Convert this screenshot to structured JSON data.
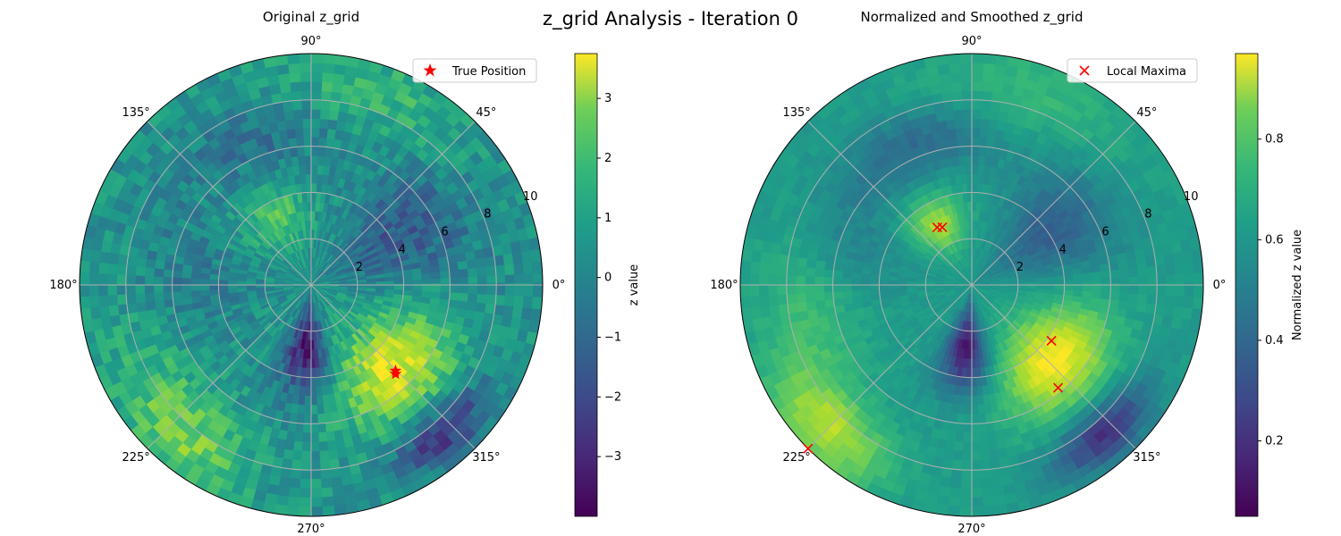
{
  "suptitle": "z_grid Analysis - Iteration 0",
  "chart_data": [
    {
      "type": "heatmap",
      "projection": "polar",
      "title": "Original z_grid",
      "theta_tick_labels": [
        "0°",
        "45°",
        "90°",
        "135°",
        "180°",
        "225°",
        "270°",
        "315°"
      ],
      "r_tick_labels": [
        "2",
        "4",
        "6",
        "8",
        "10"
      ],
      "r_ticks": [
        2,
        4,
        6,
        8,
        10
      ],
      "rlim": [
        0,
        10
      ],
      "grid": true,
      "colormap": "viridis",
      "colorbar": {
        "label": "z value",
        "vmin": -4.0,
        "vmax": 3.75,
        "ticks": [
          -3,
          -2,
          -1,
          0,
          1,
          2,
          3
        ],
        "tick_labels": [
          "−3",
          "−2",
          "−1",
          "0",
          "1",
          "2",
          "3"
        ]
      },
      "features": [
        {
          "theta_deg": 315,
          "r": 5.0,
          "sigma_r": 1.6,
          "sigma_theta_deg": 22,
          "z": 3.4
        },
        {
          "theta_deg": 118,
          "r": 3.2,
          "sigma_r": 1.0,
          "sigma_theta_deg": 18,
          "z": 1.7
        },
        {
          "theta_deg": 232,
          "r": 8.6,
          "sigma_r": 1.3,
          "sigma_theta_deg": 14,
          "z": 1.8
        },
        {
          "theta_deg": 205,
          "r": 7.5,
          "sigma_r": 1.5,
          "sigma_theta_deg": 20,
          "z": 1.0
        },
        {
          "theta_deg": 266,
          "r": 2.8,
          "sigma_r": 1.4,
          "sigma_theta_deg": 12,
          "z": -3.6
        },
        {
          "theta_deg": 312,
          "r": 8.6,
          "sigma_r": 0.8,
          "sigma_theta_deg": 12,
          "z": -3.0
        },
        {
          "theta_deg": 30,
          "r": 4.5,
          "sigma_r": 2.5,
          "sigma_theta_deg": 20,
          "z": -1.8
        },
        {
          "theta_deg": 110,
          "r": 6.8,
          "sigma_r": 1.2,
          "sigma_theta_deg": 22,
          "z": -1.2
        },
        {
          "theta_deg": 180,
          "r": 5.5,
          "sigma_r": 2.0,
          "sigma_theta_deg": 20,
          "z": -0.9
        },
        {
          "theta_deg": 70,
          "r": 8.5,
          "sigma_r": 1.4,
          "sigma_theta_deg": 25,
          "z": 1.2
        }
      ],
      "markers": [
        {
          "label": "True Position",
          "symbol": "star",
          "color": "#ff0000",
          "points": [
            {
              "theta_deg": 313.5,
              "r": 5.3
            },
            {
              "theta_deg": 314.5,
              "r": 5.2
            }
          ]
        }
      ],
      "legend_position": "upper right"
    },
    {
      "type": "heatmap",
      "projection": "polar",
      "title": "Normalized and Smoothed z_grid",
      "theta_tick_labels": [
        "0°",
        "45°",
        "90°",
        "135°",
        "180°",
        "225°",
        "270°",
        "315°"
      ],
      "r_tick_labels": [
        "2",
        "4",
        "6",
        "8",
        "10"
      ],
      "r_ticks": [
        2,
        4,
        6,
        8,
        10
      ],
      "rlim": [
        0,
        10
      ],
      "grid": true,
      "colormap": "viridis",
      "colorbar": {
        "label": "Normalized z value",
        "vmin": 0.05,
        "vmax": 0.97,
        "ticks": [
          0.2,
          0.4,
          0.6,
          0.8
        ],
        "tick_labels": [
          "0.2",
          "0.4",
          "0.6",
          "0.8"
        ]
      },
      "features": [
        {
          "theta_deg": 318,
          "r": 4.8,
          "sigma_r": 1.5,
          "sigma_theta_deg": 22,
          "z": 0.42
        },
        {
          "theta_deg": 120,
          "r": 3.0,
          "sigma_r": 0.9,
          "sigma_theta_deg": 16,
          "z": 0.3
        },
        {
          "theta_deg": 225,
          "r": 8.8,
          "sigma_r": 1.2,
          "sigma_theta_deg": 14,
          "z": 0.3
        },
        {
          "theta_deg": 190,
          "r": 7.0,
          "sigma_r": 1.6,
          "sigma_theta_deg": 20,
          "z": 0.15
        },
        {
          "theta_deg": 265,
          "r": 2.8,
          "sigma_r": 1.3,
          "sigma_theta_deg": 12,
          "z": -0.45
        },
        {
          "theta_deg": 312,
          "r": 8.6,
          "sigma_r": 0.8,
          "sigma_theta_deg": 12,
          "z": -0.38
        },
        {
          "theta_deg": 35,
          "r": 4.2,
          "sigma_r": 2.2,
          "sigma_theta_deg": 20,
          "z": -0.22
        },
        {
          "theta_deg": 110,
          "r": 6.6,
          "sigma_r": 1.1,
          "sigma_theta_deg": 22,
          "z": -0.18
        },
        {
          "theta_deg": 165,
          "r": 5.5,
          "sigma_r": 1.8,
          "sigma_theta_deg": 20,
          "z": -0.1
        },
        {
          "theta_deg": 70,
          "r": 8.5,
          "sigma_r": 1.4,
          "sigma_theta_deg": 25,
          "z": 0.12
        }
      ],
      "base_value": 0.55,
      "markers": [
        {
          "label": "Local Maxima",
          "symbol": "x",
          "color": "#ff0000",
          "points": [
            {
              "theta_deg": 117,
              "r": 2.8
            },
            {
              "theta_deg": 121,
              "r": 2.9
            },
            {
              "theta_deg": 325,
              "r": 4.2
            },
            {
              "theta_deg": 310,
              "r": 5.8
            },
            {
              "theta_deg": 225,
              "r": 10.0
            }
          ]
        }
      ],
      "legend_position": "upper right"
    }
  ]
}
